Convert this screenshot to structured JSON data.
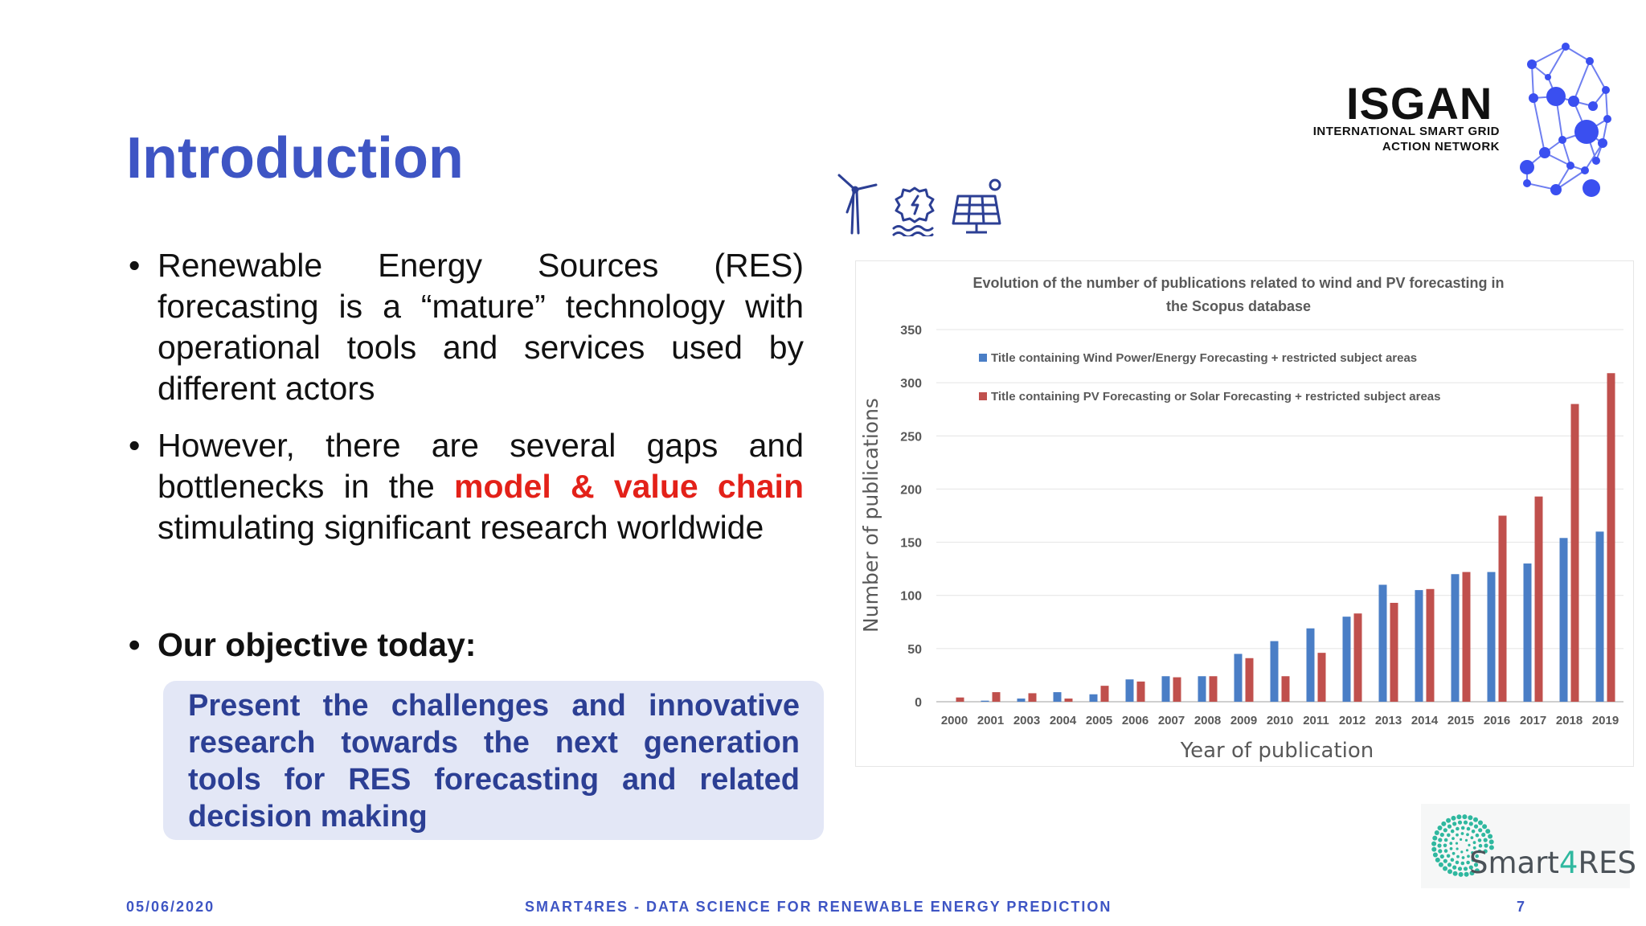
{
  "slide": {
    "title": "Introduction",
    "bullets": [
      "Renewable Energy Sources (RES) forecasting is a “mature” technology with operational tools and services used by different actors",
      {
        "before": "However, there are several gaps and bottlenecks in the ",
        "highlight": "model & value chain",
        "after": " stimulating significant research worldwide"
      },
      "Our objective today:"
    ],
    "bullet_char": "•",
    "objective": "Present the challenges and innovative research towards the next generation tools for RES forecasting and related decision making",
    "highlight_color": "#e32119",
    "title_color": "#3e55c4"
  },
  "footer": {
    "date": "05/06/2020",
    "center": "SMART4RES - DATA SCIENCE FOR RENEWABLE ENERGY PREDICTION",
    "page": "7"
  },
  "logos": {
    "isgan_word": "ISGAN",
    "isgan_line1": "INTERNATIONAL SMART GRID",
    "isgan_line2": "ACTION NETWORK",
    "smart_prefix": "Smart",
    "smart_four": "4",
    "smart_suffix": "RES"
  },
  "icons": [
    "wind-turbine-icon",
    "hydro-icon",
    "solar-panel-icon"
  ],
  "chart_data": {
    "type": "bar",
    "title": "Evolution of the number of publications related to wind and PV forecasting in the Scopus database",
    "title_line1": "Evolution of the number of publications related to wind and PV forecasting in",
    "title_line2": "the Scopus database",
    "xlabel": "Year of publication",
    "ylabel": "Number of publications",
    "ylim": [
      0,
      350
    ],
    "yticks": [
      0,
      50,
      100,
      150,
      200,
      250,
      300,
      350
    ],
    "grid": true,
    "legend_position": "top-left",
    "categories": [
      "2000",
      "2001",
      "2003",
      "2004",
      "2005",
      "2006",
      "2007",
      "2008",
      "2009",
      "2010",
      "2011",
      "2012",
      "2013",
      "2014",
      "2015",
      "2016",
      "2017",
      "2018",
      "2019"
    ],
    "series": [
      {
        "name": "Title containing Wind Power/Energy Forecasting + restricted subject areas",
        "color": "#4a7ec6",
        "values": [
          0,
          1,
          3,
          9,
          7,
          21,
          24,
          24,
          45,
          57,
          69,
          80,
          110,
          105,
          120,
          122,
          130,
          154,
          160
        ]
      },
      {
        "name": "Title containing PV Forecasting or Solar Forecasting + restricted subject areas",
        "color": "#c0504d",
        "values": [
          4,
          9,
          8,
          3,
          15,
          19,
          23,
          24,
          41,
          24,
          46,
          83,
          93,
          106,
          122,
          175,
          193,
          280,
          309
        ]
      }
    ]
  }
}
